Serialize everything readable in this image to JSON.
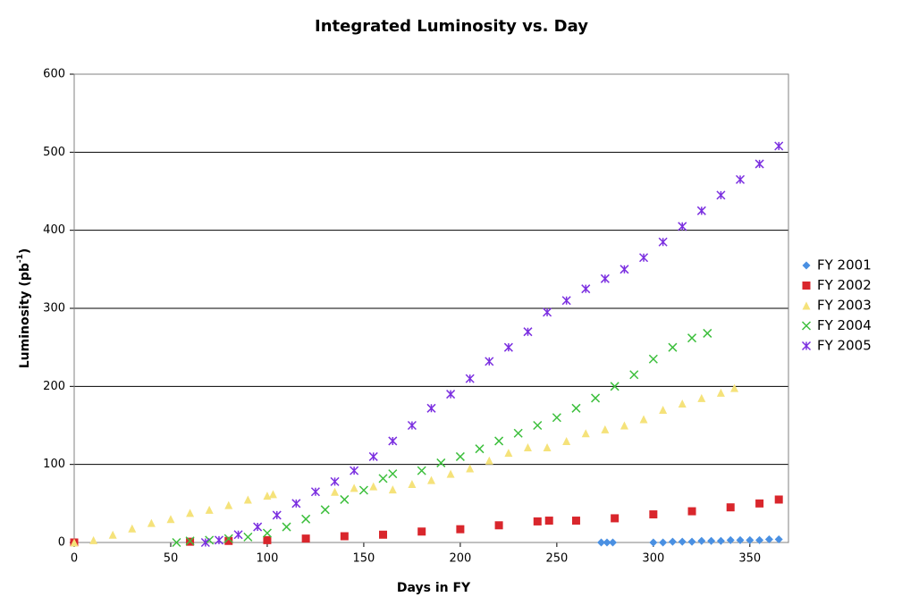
{
  "chart_data": {
    "type": "scatter",
    "title": "Integrated Luminosity vs. Day",
    "xlabel": "Days in FY",
    "ylabel": "Luminosity (pb",
    "ylabel_sup": "-1",
    "ylabel_end": ")",
    "xlim": [
      0,
      370
    ],
    "xticks": [
      0,
      50,
      100,
      150,
      200,
      250,
      300,
      350
    ],
    "ylim": [
      0,
      600
    ],
    "yticks": [
      0,
      100,
      200,
      300,
      400,
      500,
      600
    ],
    "grid": true,
    "legend": "right",
    "series": [
      {
        "name": "FY 2001",
        "color": "#4a90e2",
        "marker": "diamond",
        "x": [
          273,
          276,
          279,
          300,
          305,
          310,
          315,
          320,
          325,
          330,
          335,
          340,
          345,
          350,
          355,
          360,
          365
        ],
        "values": [
          0,
          0,
          0,
          0,
          0,
          1,
          1,
          1,
          2,
          2,
          2,
          3,
          3,
          3,
          3,
          4,
          4
        ]
      },
      {
        "name": "FY 2002",
        "color": "#d9262c",
        "marker": "square",
        "x": [
          0,
          60,
          80,
          100,
          120,
          140,
          160,
          180,
          200,
          220,
          240,
          246,
          260,
          280,
          300,
          320,
          340,
          355,
          365
        ],
        "values": [
          0,
          1,
          2,
          3,
          5,
          8,
          10,
          14,
          17,
          22,
          27,
          28,
          28,
          31,
          36,
          40,
          45,
          50,
          55
        ]
      },
      {
        "name": "FY 2003",
        "color": "#f5e27a",
        "marker": "triangle",
        "x": [
          0,
          10,
          20,
          30,
          40,
          50,
          60,
          70,
          80,
          90,
          100,
          103,
          135,
          145,
          155,
          165,
          175,
          185,
          195,
          205,
          215,
          225,
          235,
          245,
          255,
          265,
          275,
          285,
          295,
          305,
          315,
          325,
          335,
          342
        ],
        "values": [
          0,
          3,
          10,
          18,
          25,
          30,
          38,
          42,
          48,
          55,
          60,
          62,
          65,
          70,
          72,
          68,
          75,
          80,
          88,
          95,
          105,
          115,
          122,
          122,
          130,
          140,
          145,
          150,
          158,
          170,
          178,
          185,
          192,
          198
        ]
      },
      {
        "name": "FY 2004",
        "color": "#3dbf3d",
        "marker": "x",
        "x": [
          53,
          60,
          70,
          80,
          90,
          100,
          110,
          120,
          130,
          140,
          150,
          160,
          165,
          180,
          190,
          200,
          210,
          220,
          230,
          240,
          250,
          260,
          270,
          280,
          290,
          300,
          310,
          320,
          328
        ],
        "values": [
          0,
          2,
          3,
          5,
          7,
          12,
          20,
          30,
          42,
          55,
          67,
          82,
          88,
          92,
          102,
          110,
          120,
          130,
          140,
          150,
          160,
          172,
          185,
          200,
          215,
          235,
          250,
          262,
          268
        ]
      },
      {
        "name": "FY 2005",
        "color": "#7b2fe0",
        "marker": "star",
        "x": [
          68,
          75,
          85,
          95,
          105,
          115,
          125,
          135,
          145,
          155,
          165,
          175,
          185,
          195,
          205,
          215,
          225,
          235,
          245,
          255,
          265,
          275,
          285,
          295,
          305,
          315,
          325,
          335,
          345,
          355,
          365
        ],
        "values": [
          0,
          3,
          10,
          20,
          35,
          50,
          65,
          78,
          92,
          110,
          130,
          150,
          172,
          190,
          210,
          232,
          250,
          270,
          295,
          310,
          325,
          338,
          350,
          365,
          385,
          405,
          425,
          445,
          465,
          485,
          508
        ]
      }
    ]
  }
}
